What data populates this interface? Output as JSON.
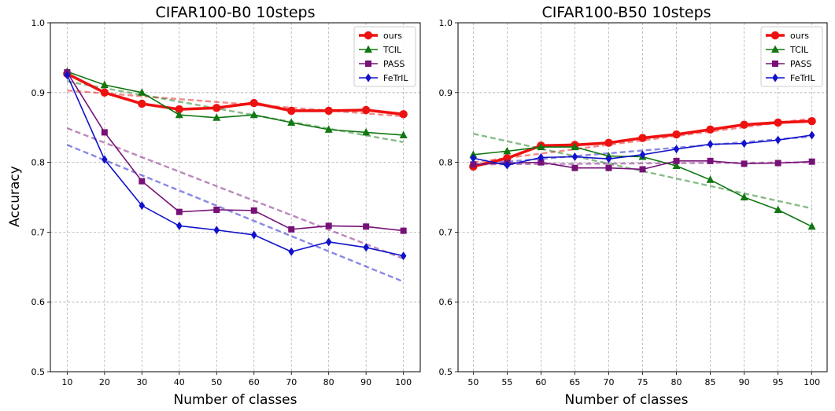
{
  "chart_data": [
    {
      "type": "line",
      "title": "CIFAR100-B0 10steps",
      "xlabel": "Number of classes",
      "ylabel": "Accuracy",
      "x": [
        10,
        20,
        30,
        40,
        50,
        60,
        70,
        80,
        90,
        100
      ],
      "xticks": [
        "10",
        "20",
        "30",
        "40",
        "50",
        "60",
        "70",
        "80",
        "90",
        "100"
      ],
      "ylim": [
        0.5,
        1.0
      ],
      "yticks": [
        "0.5",
        "0.6",
        "0.7",
        "0.8",
        "0.9",
        "1.0"
      ],
      "grid": true,
      "legend_position": "top-right",
      "series": [
        {
          "name": "ours",
          "color": "#ee1111",
          "marker": "circle",
          "values": [
            0.927,
            0.9,
            0.884,
            0.876,
            0.878,
            0.885,
            0.874,
            0.874,
            0.875,
            0.869
          ],
          "trend": [
            0.903,
            0.866
          ]
        },
        {
          "name": "TCIL",
          "color": "#117711",
          "marker": "triangle",
          "values": [
            0.93,
            0.911,
            0.9,
            0.868,
            0.864,
            0.868,
            0.857,
            0.847,
            0.843,
            0.839
          ],
          "trend": [
            0.916,
            0.829
          ]
        },
        {
          "name": "PASS",
          "color": "#771177",
          "marker": "square",
          "values": [
            0.929,
            0.843,
            0.773,
            0.729,
            0.732,
            0.731,
            0.704,
            0.709,
            0.708,
            0.702
          ],
          "trend": [
            0.849,
            0.662
          ]
        },
        {
          "name": "FeTrIL",
          "color": "#1111cc",
          "marker": "diamond",
          "values": [
            0.925,
            0.804,
            0.738,
            0.709,
            0.703,
            0.696,
            0.672,
            0.686,
            0.678,
            0.666
          ],
          "trend": [
            0.825,
            0.629
          ]
        }
      ]
    },
    {
      "type": "line",
      "title": "CIFAR100-B50 10steps",
      "xlabel": "Number of classes",
      "ylabel": "",
      "x": [
        50,
        55,
        60,
        65,
        70,
        75,
        80,
        85,
        90,
        95,
        100
      ],
      "xticks": [
        "50",
        "55",
        "60",
        "65",
        "70",
        "75",
        "80",
        "85",
        "90",
        "95",
        "100"
      ],
      "ylim": [
        0.5,
        1.0
      ],
      "yticks": [
        "0.5",
        "0.6",
        "0.7",
        "0.8",
        "0.9",
        "1.0"
      ],
      "grid": true,
      "legend_position": "top-right",
      "series": [
        {
          "name": "ours",
          "color": "#ee1111",
          "marker": "circle",
          "values": [
            0.794,
            0.806,
            0.824,
            0.825,
            0.828,
            0.835,
            0.84,
            0.847,
            0.854,
            0.857,
            0.859
          ],
          "trend": [
            0.8,
            0.863
          ]
        },
        {
          "name": "TCIL",
          "color": "#117711",
          "marker": "triangle",
          "values": [
            0.811,
            0.816,
            0.822,
            0.822,
            0.809,
            0.808,
            0.795,
            0.775,
            0.75,
            0.732,
            0.708
          ],
          "trend": [
            0.841,
            0.734
          ]
        },
        {
          "name": "PASS",
          "color": "#771177",
          "marker": "square",
          "values": [
            0.797,
            0.799,
            0.8,
            0.792,
            0.792,
            0.79,
            0.802,
            0.802,
            0.798,
            0.799,
            0.801
          ],
          "trend": [
            0.797,
            0.8
          ]
        },
        {
          "name": "FeTrIL",
          "color": "#1111cc",
          "marker": "diamond",
          "values": [
            0.806,
            0.796,
            0.807,
            0.808,
            0.805,
            0.811,
            0.819,
            0.826,
            0.827,
            0.832,
            0.839
          ],
          "trend": [
            0.797,
            0.837
          ]
        }
      ]
    }
  ]
}
